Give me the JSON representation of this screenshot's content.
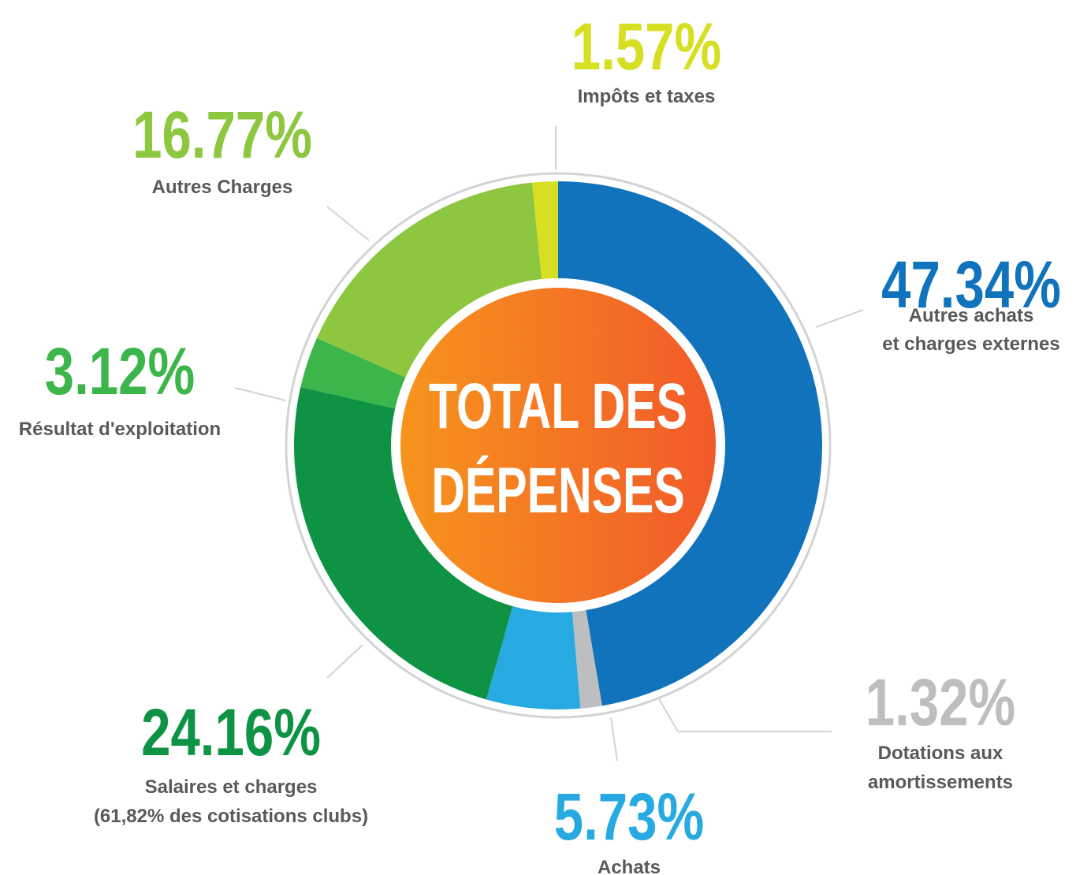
{
  "chart_data": {
    "type": "donut",
    "title": [
      "TOTAL DES",
      "DÉPENSES"
    ],
    "categories": [
      [
        "Autres achats",
        "et charges externes"
      ],
      [
        "Dotations aux",
        "amortissements"
      ],
      [
        "Achats"
      ],
      [
        "Salaires et charges",
        "(61,82% des cotisations clubs)"
      ],
      [
        "Résultat d'exploitation"
      ],
      [
        "Autres Charges"
      ],
      [
        "Impôts et taxes"
      ]
    ],
    "values": [
      47.34,
      1.32,
      5.73,
      24.16,
      3.12,
      16.77,
      1.57
    ],
    "value_labels": [
      "47.34%",
      "1.32%",
      "5.73%",
      "24.16%",
      "3.12%",
      "16.77%",
      "1.57%"
    ],
    "colors": [
      "#1173bb",
      "#bcbec0",
      "#27a9e1",
      "#0e9345",
      "#3cb54a",
      "#8dc63f",
      "#d7df23"
    ]
  }
}
